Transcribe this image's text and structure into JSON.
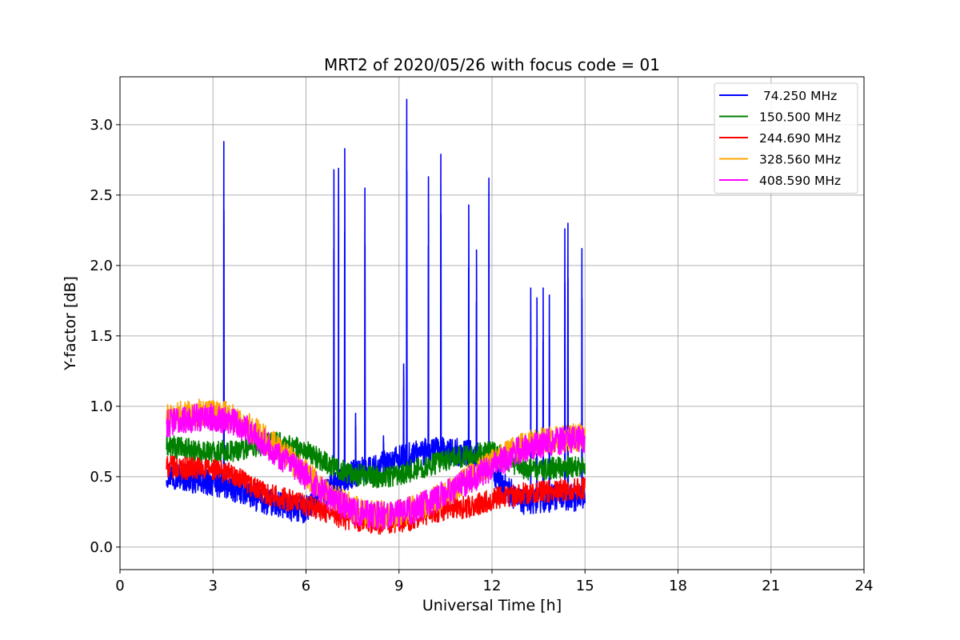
{
  "chart_data": {
    "type": "line",
    "title": "MRT2 of 2020/05/26 with focus code = 01",
    "xlabel": "Universal Time [h]",
    "ylabel": "Y-factor [dB]",
    "xlim": [
      0,
      24
    ],
    "ylim": [
      -0.16,
      3.34
    ],
    "x_ticks": [
      0,
      3,
      6,
      9,
      12,
      15,
      18,
      21,
      24
    ],
    "x_tick_labels": [
      "0",
      "3",
      "6",
      "9",
      "12",
      "15",
      "18",
      "21",
      "24"
    ],
    "y_ticks": [
      0.0,
      0.5,
      1.0,
      1.5,
      2.0,
      2.5,
      3.0
    ],
    "y_tick_labels": [
      "0.0",
      "0.5",
      "1.0",
      "1.5",
      "2.0",
      "2.5",
      "3.0"
    ],
    "grid": true,
    "legend_position": "top-right",
    "series": [
      {
        "name": " 74.250 MHz",
        "color": "#0000ff",
        "x": [
          1.5,
          2.0,
          2.5,
          3.0,
          3.5,
          4.0,
          4.5,
          5.0,
          5.5,
          6.0,
          6.5,
          7.0,
          7.5,
          8.0,
          8.5,
          9.0,
          9.5,
          10.0,
          10.5,
          11.0,
          11.5,
          12.0,
          12.5,
          13.0,
          13.5,
          14.0,
          14.5,
          15.0
        ],
        "y": [
          0.52,
          0.5,
          0.47,
          0.46,
          0.43,
          0.4,
          0.34,
          0.3,
          0.28,
          0.27,
          0.36,
          0.45,
          0.52,
          0.55,
          0.58,
          0.62,
          0.66,
          0.68,
          0.68,
          0.67,
          0.65,
          0.55,
          0.4,
          0.33,
          0.34,
          0.35,
          0.35,
          0.36
        ],
        "noise_amplitude": 0.1,
        "spikes": [
          {
            "x": 3.35,
            "y": 2.88
          },
          {
            "x": 6.9,
            "y": 2.68
          },
          {
            "x": 7.05,
            "y": 2.69
          },
          {
            "x": 7.25,
            "y": 2.83
          },
          {
            "x": 7.6,
            "y": 0.95
          },
          {
            "x": 7.9,
            "y": 2.55
          },
          {
            "x": 8.5,
            "y": 0.79
          },
          {
            "x": 9.15,
            "y": 1.3
          },
          {
            "x": 9.25,
            "y": 3.18
          },
          {
            "x": 9.95,
            "y": 2.63
          },
          {
            "x": 10.35,
            "y": 2.79
          },
          {
            "x": 11.25,
            "y": 2.43
          },
          {
            "x": 11.5,
            "y": 2.11
          },
          {
            "x": 11.9,
            "y": 2.62
          },
          {
            "x": 13.25,
            "y": 1.84
          },
          {
            "x": 13.45,
            "y": 1.77
          },
          {
            "x": 13.65,
            "y": 1.84
          },
          {
            "x": 13.85,
            "y": 1.79
          },
          {
            "x": 14.35,
            "y": 2.26
          },
          {
            "x": 14.45,
            "y": 2.3
          },
          {
            "x": 14.9,
            "y": 2.12
          }
        ]
      },
      {
        "name": "150.500 MHz",
        "color": "#008000",
        "x": [
          1.5,
          2.0,
          2.5,
          3.0,
          3.5,
          4.0,
          4.5,
          5.0,
          5.5,
          6.0,
          6.5,
          7.0,
          7.5,
          8.0,
          8.5,
          9.0,
          9.5,
          10.0,
          10.5,
          11.0,
          11.5,
          12.0,
          12.5,
          13.0,
          13.5,
          14.0,
          14.5,
          15.0
        ],
        "y": [
          0.72,
          0.7,
          0.68,
          0.68,
          0.68,
          0.7,
          0.72,
          0.74,
          0.72,
          0.68,
          0.62,
          0.56,
          0.52,
          0.5,
          0.5,
          0.52,
          0.55,
          0.58,
          0.62,
          0.64,
          0.66,
          0.67,
          0.62,
          0.56,
          0.55,
          0.56,
          0.57,
          0.58
        ],
        "noise_amplitude": 0.08,
        "spikes": []
      },
      {
        "name": "244.690 MHz",
        "color": "#ff0000",
        "x": [
          1.5,
          2.0,
          2.5,
          3.0,
          3.5,
          4.0,
          4.5,
          5.0,
          5.5,
          6.0,
          6.5,
          7.0,
          7.5,
          8.0,
          8.5,
          9.0,
          9.5,
          10.0,
          10.5,
          11.0,
          11.5,
          12.0,
          12.5,
          13.0,
          13.5,
          14.0,
          14.5,
          15.0
        ],
        "y": [
          0.57,
          0.56,
          0.56,
          0.55,
          0.53,
          0.46,
          0.4,
          0.36,
          0.33,
          0.3,
          0.26,
          0.22,
          0.19,
          0.17,
          0.17,
          0.18,
          0.2,
          0.24,
          0.27,
          0.28,
          0.3,
          0.34,
          0.36,
          0.38,
          0.39,
          0.4,
          0.41,
          0.42
        ],
        "noise_amplitude": 0.08,
        "spikes": []
      },
      {
        "name": "328.560 MHz",
        "color": "#ffa500",
        "x": [
          1.5,
          2.0,
          2.5,
          3.0,
          3.5,
          4.0,
          4.5,
          5.0,
          5.5,
          6.0,
          6.5,
          7.0,
          7.5,
          8.0,
          8.5,
          9.0,
          9.5,
          10.0,
          10.5,
          11.0,
          11.5,
          12.0,
          12.5,
          13.0,
          13.5,
          14.0,
          14.5,
          15.0
        ],
        "y": [
          0.92,
          0.94,
          0.95,
          0.96,
          0.93,
          0.88,
          0.8,
          0.72,
          0.62,
          0.52,
          0.42,
          0.34,
          0.28,
          0.24,
          0.23,
          0.24,
          0.27,
          0.32,
          0.38,
          0.45,
          0.52,
          0.6,
          0.66,
          0.72,
          0.75,
          0.77,
          0.78,
          0.78
        ],
        "noise_amplitude": 0.1,
        "spikes": []
      },
      {
        "name": "408.590 MHz",
        "color": "#ff00ff",
        "x": [
          1.5,
          2.0,
          2.5,
          3.0,
          3.5,
          4.0,
          4.5,
          5.0,
          5.5,
          6.0,
          6.5,
          7.0,
          7.5,
          8.0,
          8.5,
          9.0,
          9.5,
          10.0,
          10.5,
          11.0,
          11.5,
          12.0,
          12.5,
          13.0,
          13.5,
          14.0,
          14.5,
          15.0
        ],
        "y": [
          0.88,
          0.9,
          0.92,
          0.92,
          0.9,
          0.85,
          0.77,
          0.68,
          0.58,
          0.5,
          0.4,
          0.32,
          0.26,
          0.23,
          0.22,
          0.24,
          0.27,
          0.32,
          0.38,
          0.44,
          0.5,
          0.57,
          0.64,
          0.7,
          0.73,
          0.75,
          0.76,
          0.76
        ],
        "noise_amplitude": 0.1,
        "spikes": []
      }
    ]
  }
}
